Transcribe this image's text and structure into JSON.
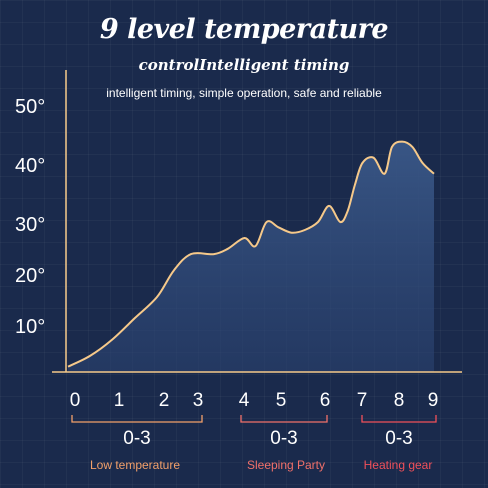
{
  "title": "9 level temperature",
  "subtitle": "controlIntelligent timing",
  "tagline": "intelligent timing, simple operation, safe and reliable",
  "colors": {
    "background": "#1a2a4c",
    "curve": "#f6c98a",
    "axis": "#f6c98a",
    "low": "#f2a06a",
    "sleeping": "#f0706a",
    "heating": "#f0505a"
  },
  "chart_data": {
    "type": "area",
    "y_ticks": [
      "50°",
      "40°",
      "30°",
      "20°",
      "10°"
    ],
    "y_tick_values": [
      50,
      40,
      30,
      20,
      10
    ],
    "x_ticks": [
      "0",
      "1",
      "2",
      "3",
      "4",
      "5",
      "6",
      "7",
      "8",
      "9"
    ],
    "x": [
      0,
      0.5,
      1,
      1.5,
      2,
      2.5,
      3,
      3.5,
      3.8,
      4.2,
      4.5,
      4.8,
      5.1,
      5.4,
      5.7,
      6.0,
      6.3,
      6.6,
      6.8,
      7.0,
      7.2,
      7.5,
      7.8,
      8.0,
      8.3,
      8.6,
      8.9,
      9.2
    ],
    "y": [
      1,
      3,
      6,
      10,
      14,
      19,
      22,
      22,
      23,
      25,
      23.5,
      28,
      27,
      26,
      26.5,
      28,
      31,
      28,
      30,
      35,
      39,
      40,
      37,
      42,
      43,
      42,
      39,
      37
    ],
    "ylim": [
      0,
      53
    ],
    "groups": [
      {
        "range": "0-3",
        "label": "Low temperature"
      },
      {
        "range": "0-3",
        "label": "Sleeping Party"
      },
      {
        "range": "0-3",
        "label": "Heating gear"
      }
    ]
  }
}
